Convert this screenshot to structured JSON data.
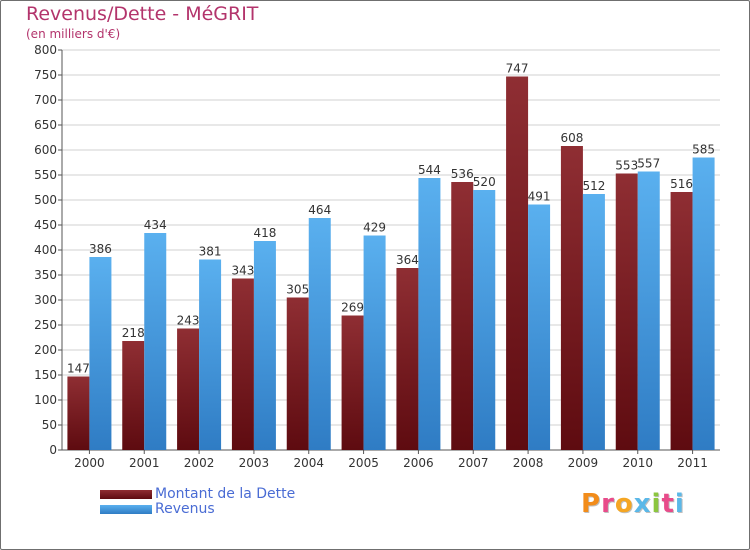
{
  "chart_data": {
    "type": "bar",
    "title": "Revenus/Dette - MéGRIT",
    "subtitle": "(en milliers d'€)",
    "categories": [
      "2000",
      "2001",
      "2002",
      "2003",
      "2004",
      "2005",
      "2006",
      "2007",
      "2008",
      "2009",
      "2010",
      "2011"
    ],
    "series": [
      {
        "name": "Montant de la Dette",
        "color": "#7a1e22",
        "values": [
          147,
          218,
          243,
          343,
          305,
          269,
          364,
          536,
          747,
          608,
          553,
          516
        ]
      },
      {
        "name": "Revenus",
        "color": "#4aa3e8",
        "values": [
          386,
          434,
          381,
          418,
          464,
          429,
          544,
          520,
          491,
          512,
          557,
          585
        ]
      }
    ],
    "ylim": [
      0,
      800
    ],
    "yticks": [
      0,
      50,
      100,
      150,
      200,
      250,
      300,
      350,
      400,
      450,
      500,
      550,
      600,
      650,
      700,
      750,
      800
    ],
    "grid": true,
    "legend_position": "bottom-left"
  },
  "logo": {
    "text": "Proxiti",
    "letter_colors": [
      "#f28c1a",
      "#e84b8a",
      "#f5a623",
      "#5bb8e8",
      "#8cc63f",
      "#e84b8a",
      "#5bb8e8"
    ]
  }
}
